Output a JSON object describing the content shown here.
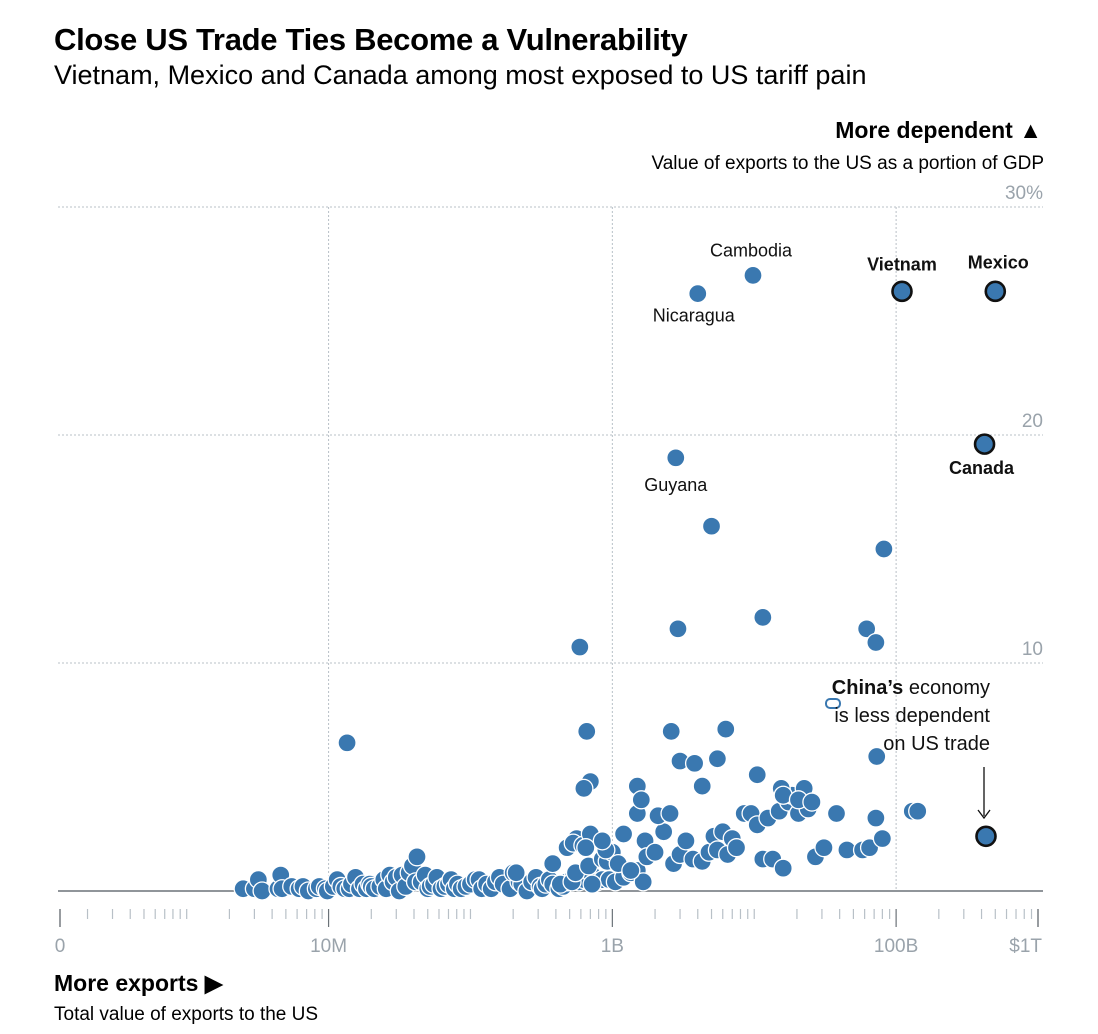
{
  "header": {
    "title": "Close US Trade Ties Become a Vulnerability",
    "subtitle": "Vietnam, Mexico and Canada among most exposed to US tariff pain"
  },
  "y_axis": {
    "heading": "More dependent ▲",
    "description": "Value of exports to the US as a portion of GDP"
  },
  "x_axis": {
    "heading": "More exports ▶",
    "description": "Total value of exports to the US"
  },
  "note": {
    "bold": "China’s",
    "line1_rest": " economy",
    "line2": "is less dependent",
    "line3": "on US trade"
  },
  "colors": {
    "point": "#3a78b0",
    "point_stroke": "#ffffff",
    "highlight_stroke": "#111111",
    "grid": "#b8c0c7",
    "axis": "#6b7278",
    "tick_label": "#9aa3ab"
  },
  "chart_data": {
    "type": "scatter",
    "x_scale": "log",
    "x_unit": "USD",
    "x_ticks": [
      {
        "value": 0,
        "label": "0"
      },
      {
        "value": 10000000,
        "label": "10M"
      },
      {
        "value": 1000000000,
        "label": "1B"
      },
      {
        "value": 100000000000,
        "label": "100B"
      },
      {
        "value": 1000000000000,
        "label": "$1T"
      }
    ],
    "y_ticks": [
      {
        "value": 10,
        "label": "10"
      },
      {
        "value": 20,
        "label": "20"
      },
      {
        "value": 30,
        "label": "30%"
      }
    ],
    "ylim": [
      0,
      30
    ],
    "grid": true,
    "labeled_points": [
      {
        "name": "Vietnam",
        "x": 110000000000,
        "y": 26.3,
        "highlight": true
      },
      {
        "name": "Mexico",
        "x": 500000000000,
        "y": 26.3,
        "highlight": true
      },
      {
        "name": "Canada",
        "x": 420000000000,
        "y": 19.6,
        "highlight": true
      },
      {
        "name": "Cambodia",
        "x": 9800000000,
        "y": 27.0,
        "highlight": false
      },
      {
        "name": "Nicaragua",
        "x": 4000000000,
        "y": 26.2,
        "highlight": false
      },
      {
        "name": "Guyana",
        "x": 2800000000,
        "y": 19.0,
        "highlight": false
      },
      {
        "name": "China",
        "x": 430000000000,
        "y": 2.4,
        "highlight": true
      }
    ],
    "points": [
      [
        2500000.0,
        0.1
      ],
      [
        3000000.0,
        0.1
      ],
      [
        3200000.0,
        0.5
      ],
      [
        3400000.0,
        0.0
      ],
      [
        4400000.0,
        0.1
      ],
      [
        4600000.0,
        0.7
      ],
      [
        4700000.0,
        0.1
      ],
      [
        5500000.0,
        0.2
      ],
      [
        6200000.0,
        0.1
      ],
      [
        6600000.0,
        0.2
      ],
      [
        7200000.0,
        0.0
      ],
      [
        8200000.0,
        0.1
      ],
      [
        8600000.0,
        0.2
      ],
      [
        9500000.0,
        0.1
      ],
      [
        9800000.0,
        0.0
      ],
      [
        10800000.0,
        0.2
      ],
      [
        11500000.0,
        0.5
      ],
      [
        12200000.0,
        0.2
      ],
      [
        13000000.0,
        0.1
      ],
      [
        14000000.0,
        0.1
      ],
      [
        14500000.0,
        0.3
      ],
      [
        15500000.0,
        0.6
      ],
      [
        16500000.0,
        0.1
      ],
      [
        17500000.0,
        0.3
      ],
      [
        18500000.0,
        0.1
      ],
      [
        19500000.0,
        0.3
      ],
      [
        20000000.0,
        0.2
      ],
      [
        21000000.0,
        0.1
      ],
      [
        23000000.0,
        0.2
      ],
      [
        24500000.0,
        0.5
      ],
      [
        25500000.0,
        0.1
      ],
      [
        27000000.0,
        0.7
      ],
      [
        28500000.0,
        0.4
      ],
      [
        30000000.0,
        0.6
      ],
      [
        31500000.0,
        0.0
      ],
      [
        33000000.0,
        0.7
      ],
      [
        35000000.0,
        0.2
      ],
      [
        37000000.0,
        0.8
      ],
      [
        39000000.0,
        1.1
      ],
      [
        41000000.0,
        0.4
      ],
      [
        42000000.0,
        1.5
      ],
      [
        45000000.0,
        0.4
      ],
      [
        48000000.0,
        0.7
      ],
      [
        50000000.0,
        0.1
      ],
      [
        52000000.0,
        0.2
      ],
      [
        55000000.0,
        0.3
      ],
      [
        58000000.0,
        0.6
      ],
      [
        62000000.0,
        0.1
      ],
      [
        66000000.0,
        0.2
      ],
      [
        70000000.0,
        0.3
      ],
      [
        73000000.0,
        0.5
      ],
      [
        77000000.0,
        0.1
      ],
      [
        81000000.0,
        0.3
      ],
      [
        86000000.0,
        0.1
      ],
      [
        93000000.0,
        0.2
      ],
      [
        100000000.0,
        0.3
      ],
      [
        108000000.0,
        0.5
      ],
      [
        115000000.0,
        0.5
      ],
      [
        120000000.0,
        0.1
      ],
      [
        130000000.0,
        0.3
      ],
      [
        140000000.0,
        0.1
      ],
      [
        150000000.0,
        0.4
      ],
      [
        160000000.0,
        0.6
      ],
      [
        170000000.0,
        0.3
      ],
      [
        190000000.0,
        0.1
      ],
      [
        200000000.0,
        0.8
      ],
      [
        220000000.0,
        0.4
      ],
      [
        230000000.0,
        0.3
      ],
      [
        250000000.0,
        0.0
      ],
      [
        270000000.0,
        0.4
      ],
      [
        290000000.0,
        0.6
      ],
      [
        310000000.0,
        0.2
      ],
      [
        320000000.0,
        0.1
      ],
      [
        340000000.0,
        0.3
      ],
      [
        360000000.0,
        0.5
      ],
      [
        380000000.0,
        0.3
      ],
      [
        420000000.0,
        0.1
      ],
      [
        450000000.0,
        0.2
      ],
      [
        480000000.0,
        0.4
      ],
      [
        530000000.0,
        0.6
      ],
      [
        580000000.0,
        0.4
      ],
      [
        600000000.0,
        0.8
      ],
      [
        630000000.0,
        0.5
      ],
      [
        720000000.0,
        0.7
      ],
      [
        780000000.0,
        0.4
      ],
      [
        850000000.0,
        0.5
      ],
      [
        950000000.0,
        0.5
      ],
      [
        1050000000.0,
        0.4
      ],
      [
        1200000000.0,
        0.6
      ],
      [
        1350000000.0,
        0.8
      ],
      [
        1500000000.0,
        0.9
      ],
      [
        1650000000.0,
        0.4
      ],
      [
        210000000.0,
        0.8
      ],
      [
        380000000.0,
        1.2
      ],
      [
        430000000.0,
        0.3
      ],
      [
        520000000.0,
        0.4
      ],
      [
        550000000.0,
        0.8
      ],
      [
        560000000.0,
        2.3
      ],
      [
        480000000.0,
        1.9
      ],
      [
        530000000.0,
        2.1
      ],
      [
        620000000.0,
        2.0
      ],
      [
        680000000.0,
        1.1
      ],
      [
        720000000.0,
        0.3
      ],
      [
        850000000.0,
        1.4
      ],
      [
        920000000.0,
        1.3
      ],
      [
        700000000.0,
        2.5
      ],
      [
        650000000.0,
        1.9
      ],
      [
        1000000000.0,
        1.7
      ],
      [
        1100000000.0,
        1.2
      ],
      [
        900000000.0,
        1.8
      ],
      [
        850000000.0,
        2.2
      ],
      [
        1200000000.0,
        2.5
      ],
      [
        1350000000.0,
        0.9
      ],
      [
        1500000000.0,
        3.4
      ],
      [
        1700000000.0,
        2.2
      ],
      [
        1750000000.0,
        1.5
      ],
      [
        2000000000.0,
        1.7
      ],
      [
        2300000000.0,
        2.6
      ],
      [
        2500000000.0,
        3.4
      ],
      [
        2700000000.0,
        1.2
      ],
      [
        3000000000.0,
        1.6
      ],
      [
        3300000000.0,
        2.2
      ],
      [
        3700000000.0,
        1.4
      ],
      [
        4300000000.0,
        1.3
      ],
      [
        4800000000.0,
        1.7
      ],
      [
        5200000000.0,
        2.4
      ],
      [
        5500000000.0,
        1.8
      ],
      [
        6000000000.0,
        2.6
      ],
      [
        6500000000.0,
        1.6
      ],
      [
        7000000000.0,
        2.3
      ],
      [
        7500000000.0,
        1.9
      ],
      [
        8500000000.0,
        3.4
      ],
      [
        9500000000.0,
        3.4
      ],
      [
        10500000000.0,
        2.9
      ],
      [
        11500000000.0,
        1.4
      ],
      [
        12500000000.0,
        3.2
      ],
      [
        13500000000.0,
        1.4
      ],
      [
        15000000000.0,
        3.5
      ],
      [
        16000000000.0,
        1.0
      ],
      [
        17500000000.0,
        3.9
      ],
      [
        18500000000.0,
        4.2
      ],
      [
        20500000000.0,
        3.4
      ],
      [
        22500000000.0,
        4.5
      ],
      [
        24000000000.0,
        3.6
      ],
      [
        27000000000.0,
        1.5
      ],
      [
        31000000000.0,
        1.9
      ],
      [
        38000000000.0,
        3.4
      ],
      [
        45000000000.0,
        1.8
      ],
      [
        58000000000.0,
        1.8
      ],
      [
        65000000000.0,
        1.9
      ],
      [
        72000000000.0,
        3.2
      ],
      [
        80000000000.0,
        2.3
      ],
      [
        130000000000.0,
        3.5
      ],
      [
        142000000000.0,
        3.5
      ],
      [
        700000000.0,
        4.8
      ],
      [
        1500000000.0,
        4.6
      ],
      [
        1600000000.0,
        4.0
      ],
      [
        2100000000.0,
        3.3
      ],
      [
        2550000000.0,
        3.4
      ],
      [
        2600000000.0,
        7.0
      ],
      [
        3000000000.0,
        5.7
      ],
      [
        3800000000.0,
        5.6
      ],
      [
        4300000000.0,
        4.6
      ],
      [
        5500000000.0,
        5.8
      ],
      [
        6300000000.0,
        7.1
      ],
      [
        10500000000.0,
        5.1
      ],
      [
        15500000000.0,
        4.5
      ],
      [
        16000000000.0,
        4.2
      ],
      [
        20500000000.0,
        4.0
      ],
      [
        25500000000.0,
        3.9
      ],
      [
        73000000000.0,
        5.9
      ],
      [
        13500000.0,
        6.5
      ],
      [
        660000000.0,
        7.0
      ],
      [
        630000000.0,
        4.5
      ],
      [
        590000000.0,
        10.7
      ],
      [
        2900000000.0,
        11.5
      ],
      [
        11500000000.0,
        12.0
      ],
      [
        62000000000.0,
        11.5
      ],
      [
        72000000000.0,
        10.9
      ],
      [
        82000000000.0,
        15.0
      ],
      [
        5000000000.0,
        16.0
      ]
    ]
  }
}
